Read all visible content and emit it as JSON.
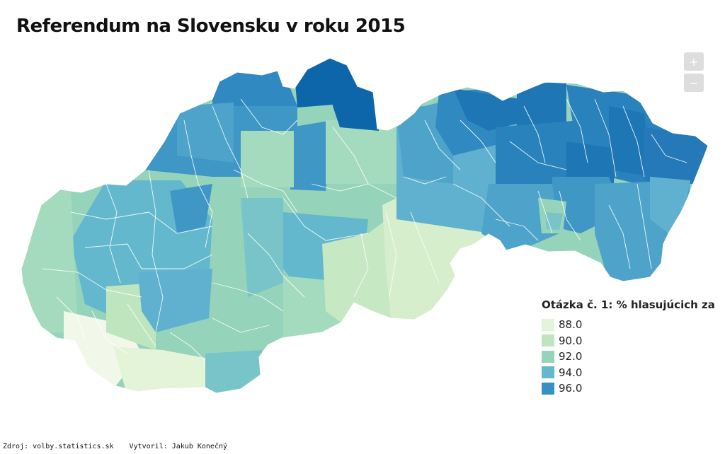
{
  "title": "Referendum na Slovensku v roku 2015",
  "controls": {
    "zoom_in": "+",
    "zoom_out": "−"
  },
  "legend": {
    "title": "Otázka č. 1: % hlasujúcich za",
    "items": [
      {
        "label": "88.0",
        "color": "#e3f4d9"
      },
      {
        "label": "90.0",
        "color": "#bfe5bf"
      },
      {
        "label": "92.0",
        "color": "#95d3bb"
      },
      {
        "label": "94.0",
        "color": "#64b8cd"
      },
      {
        "label": "96.0",
        "color": "#3690c2"
      }
    ]
  },
  "footer": {
    "source": "Zdroj: volby.statistics.sk",
    "author": "Vytvoril: Jakub Konečný"
  },
  "map": {
    "regions": [
      {
        "district": 1,
        "value": 87.4,
        "color": "#f1f8ea"
      },
      {
        "district": 2,
        "value": 89.5,
        "color": "#d6eecb"
      },
      {
        "district": 3,
        "value": 90.2,
        "color": "#c0e6c3"
      },
      {
        "district": 4,
        "value": 90.6,
        "color": "#c6e8c2"
      },
      {
        "district": 5,
        "value": 92.1,
        "color": "#96d4bc"
      },
      {
        "district": 6,
        "value": 93.4,
        "color": "#78c4c8"
      },
      {
        "district": 7,
        "value": 94.2,
        "color": "#5fb1cf"
      },
      {
        "district": 8,
        "value": 95.3,
        "color": "#3f97c6"
      },
      {
        "district": 9,
        "value": 96.4,
        "color": "#2a82bd"
      },
      {
        "district": 10,
        "value": 97.6,
        "color": "#0e66aa"
      }
    ]
  }
}
